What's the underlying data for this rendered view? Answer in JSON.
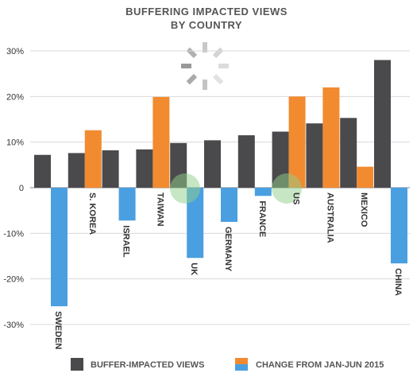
{
  "chart_data": {
    "type": "bar",
    "title_line1": "BUFFERING IMPACTED VIEWS",
    "title_line2": "BY COUNTRY",
    "ylim": [
      -30,
      30
    ],
    "yticks": [
      "30%",
      "20%",
      "10%",
      "0",
      "-10%",
      "-20%",
      "-30%"
    ],
    "grid": true,
    "legend_position": "bottom",
    "categories": [
      "SWEDEN",
      "S. KOREA",
      "ISRAEL",
      "TAIWAN",
      "UK",
      "GERMANY",
      "FRANCE",
      "US",
      "AUSTRALIA",
      "MEXICO",
      "CHINA"
    ],
    "series": [
      {
        "name": "BUFFER-IMPACTED VIEWS",
        "color": "#4a4a4d",
        "values": [
          7.2,
          7.6,
          8.2,
          8.4,
          9.8,
          10.4,
          11.5,
          12.3,
          14.1,
          15.3,
          28.0
        ]
      },
      {
        "name": "CHANGE FROM JAN-JUN 2015",
        "color_positive": "#f28a30",
        "color_negative": "#4a9fe0",
        "values": [
          -26.0,
          12.6,
          -7.2,
          19.9,
          -15.4,
          -7.5,
          -1.8,
          20.0,
          22.0,
          4.6,
          -16.6
        ]
      }
    ]
  },
  "legend": {
    "item1": "BUFFER-IMPACTED VIEWS",
    "item2": "CHANGE FROM JAN-JUN 2015"
  }
}
